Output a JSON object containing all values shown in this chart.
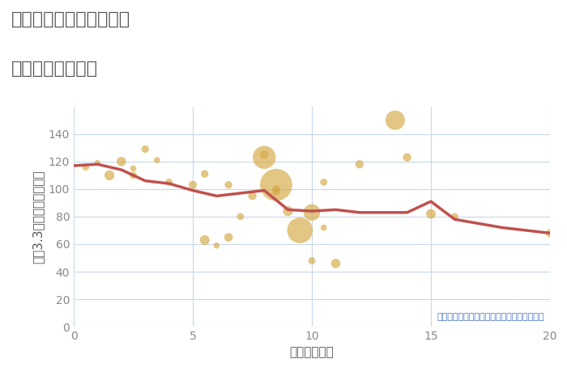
{
  "title_line1": "大阪府大阪市港区弁天の",
  "title_line2": "駅距離別土地価格",
  "xlabel": "駅距離（分）",
  "ylabel": "坪（3.3㎡）単価（万円）",
  "annotation": "円の大きさは、取引のあった物件面積を示す",
  "xlim": [
    0,
    20
  ],
  "ylim": [
    0,
    160
  ],
  "yticks": [
    0,
    20,
    40,
    60,
    80,
    100,
    120,
    140
  ],
  "xticks": [
    0,
    5,
    10,
    15,
    20
  ],
  "background_color": "#ffffff",
  "plot_bg_color": "#ffffff",
  "scatter_color": "#D4A843",
  "scatter_alpha": 0.65,
  "line_color": "#c0504d",
  "line_width": 2.5,
  "scatter_x": [
    0.5,
    1.0,
    1.5,
    2.0,
    2.5,
    2.5,
    3.0,
    3.5,
    4.0,
    5.0,
    5.5,
    5.5,
    6.0,
    6.5,
    6.5,
    7.0,
    7.5,
    8.0,
    8.0,
    8.5,
    8.5,
    8.5,
    9.0,
    9.5,
    10.0,
    10.0,
    10.5,
    10.5,
    11.0,
    12.0,
    13.5,
    14.0,
    15.0,
    16.0,
    20.0
  ],
  "scatter_y": [
    116,
    119,
    110,
    120,
    115,
    110,
    129,
    121,
    105,
    103,
    111,
    63,
    59,
    65,
    103,
    80,
    95,
    125,
    123,
    100,
    103,
    98,
    84,
    70,
    48,
    83,
    72,
    105,
    46,
    118,
    150,
    123,
    82,
    80,
    68
  ],
  "scatter_size": [
    40,
    25,
    80,
    70,
    30,
    40,
    45,
    30,
    40,
    55,
    45,
    75,
    30,
    60,
    45,
    40,
    55,
    60,
    420,
    45,
    820,
    45,
    80,
    520,
    40,
    220,
    30,
    40,
    70,
    55,
    300,
    55,
    75,
    40,
    55
  ],
  "line_x": [
    0,
    1,
    2,
    3,
    4,
    5,
    6,
    7,
    8,
    9,
    10,
    11,
    12,
    13,
    14,
    15,
    16,
    17,
    18,
    19,
    20
  ],
  "line_y": [
    117,
    118,
    114,
    106,
    104,
    99,
    95,
    97,
    99,
    85,
    84,
    85,
    83,
    83,
    83,
    91,
    78,
    75,
    72,
    70,
    68
  ],
  "annotation_color": "#4472c4",
  "title_color": "#555555",
  "label_color": "#555555",
  "tick_color": "#888888",
  "grid_color": "#c8d8e8"
}
